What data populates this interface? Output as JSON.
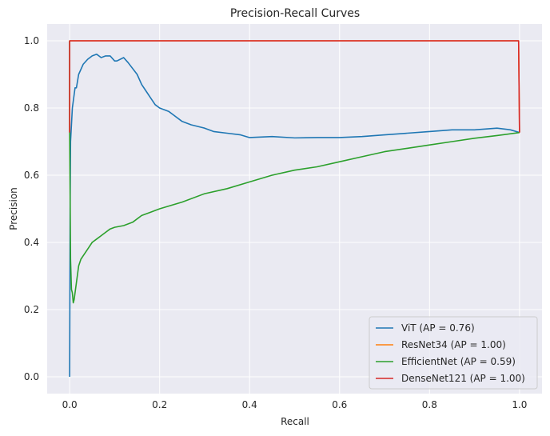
{
  "chart_data": {
    "type": "line",
    "title": "Precision-Recall Curves",
    "xlabel": "Recall",
    "ylabel": "Precision",
    "xlim": [
      -0.05,
      1.05
    ],
    "ylim": [
      -0.05,
      1.05
    ],
    "xticks": [
      0.0,
      0.2,
      0.4,
      0.6,
      0.8,
      1.0
    ],
    "yticks": [
      0.0,
      0.2,
      0.4,
      0.6,
      0.8,
      1.0
    ],
    "xtick_labels": [
      "0.0",
      "0.2",
      "0.4",
      "0.6",
      "0.8",
      "1.0"
    ],
    "ytick_labels": [
      "0.0",
      "0.2",
      "0.4",
      "0.6",
      "0.8",
      "1.0"
    ],
    "grid": true,
    "legend_position": "bottom-right",
    "series": [
      {
        "name": "ViT (AP = 0.76)",
        "color": "#1f77b4",
        "x": [
          0.0,
          0.001,
          0.002,
          0.004,
          0.006,
          0.008,
          0.01,
          0.012,
          0.015,
          0.02,
          0.03,
          0.04,
          0.05,
          0.06,
          0.065,
          0.07,
          0.08,
          0.09,
          0.1,
          0.105,
          0.12,
          0.13,
          0.15,
          0.16,
          0.17,
          0.18,
          0.19,
          0.2,
          0.22,
          0.23,
          0.25,
          0.27,
          0.3,
          0.32,
          0.35,
          0.38,
          0.4,
          0.45,
          0.5,
          0.55,
          0.6,
          0.65,
          0.7,
          0.75,
          0.8,
          0.85,
          0.9,
          0.95,
          0.98,
          1.0
        ],
        "y": [
          0.0,
          0.5,
          0.7,
          0.75,
          0.8,
          0.82,
          0.84,
          0.86,
          0.86,
          0.9,
          0.93,
          0.945,
          0.955,
          0.96,
          0.955,
          0.95,
          0.955,
          0.955,
          0.94,
          0.94,
          0.95,
          0.935,
          0.9,
          0.87,
          0.85,
          0.83,
          0.81,
          0.8,
          0.79,
          0.78,
          0.76,
          0.75,
          0.74,
          0.73,
          0.725,
          0.72,
          0.712,
          0.715,
          0.711,
          0.712,
          0.712,
          0.715,
          0.72,
          0.725,
          0.73,
          0.735,
          0.735,
          0.74,
          0.735,
          0.727
        ]
      },
      {
        "name": "ResNet34 (AP = 1.00)",
        "color": "#ff7f0e",
        "x": [
          0.0,
          0.0,
          0.5,
          0.998,
          1.0
        ],
        "y": [
          0.727,
          1.0,
          1.0,
          1.0,
          0.727
        ]
      },
      {
        "name": "EfficientNet (AP = 0.59)",
        "color": "#2ca02c",
        "x": [
          0.0,
          0.0,
          0.002,
          0.004,
          0.006,
          0.008,
          0.01,
          0.012,
          0.015,
          0.02,
          0.025,
          0.03,
          0.04,
          0.05,
          0.06,
          0.07,
          0.08,
          0.09,
          0.1,
          0.12,
          0.14,
          0.16,
          0.18,
          0.2,
          0.25,
          0.3,
          0.35,
          0.4,
          0.45,
          0.5,
          0.55,
          0.6,
          0.65,
          0.7,
          0.75,
          0.8,
          0.85,
          0.9,
          0.95,
          1.0
        ],
        "y": [
          1.0,
          0.73,
          0.35,
          0.26,
          0.25,
          0.22,
          0.23,
          0.25,
          0.28,
          0.33,
          0.35,
          0.36,
          0.38,
          0.4,
          0.41,
          0.42,
          0.43,
          0.44,
          0.445,
          0.45,
          0.46,
          0.48,
          0.49,
          0.5,
          0.52,
          0.545,
          0.56,
          0.58,
          0.6,
          0.615,
          0.625,
          0.64,
          0.655,
          0.67,
          0.68,
          0.69,
          0.7,
          0.71,
          0.718,
          0.727
        ]
      },
      {
        "name": "DenseNet121 (AP = 1.00)",
        "color": "#d62728",
        "x": [
          0.0,
          0.0,
          0.5,
          0.998,
          1.0
        ],
        "y": [
          0.727,
          1.0,
          1.0,
          1.0,
          0.727
        ]
      }
    ]
  }
}
